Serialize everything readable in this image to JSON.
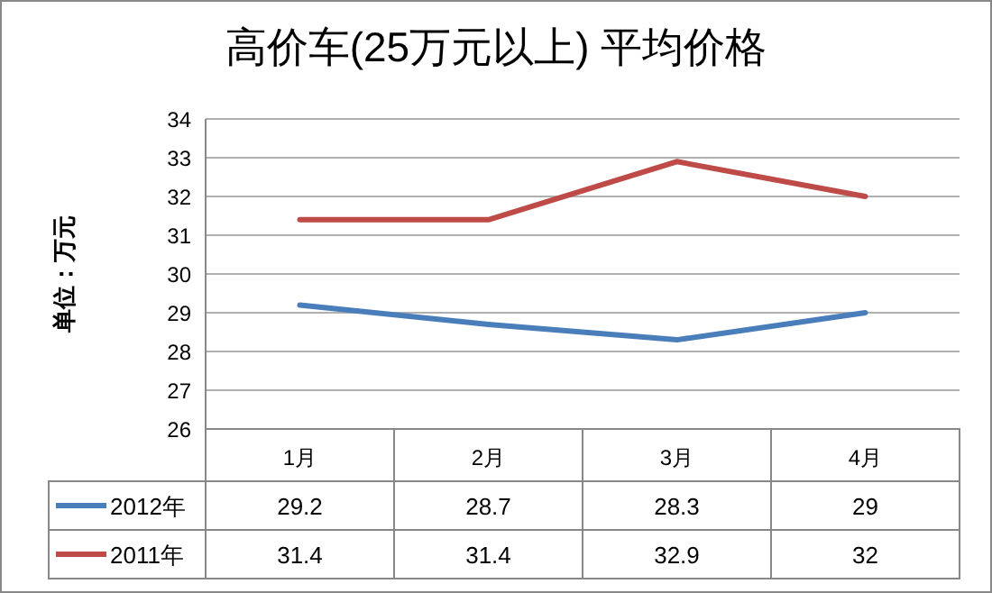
{
  "chart_data": {
    "type": "line",
    "title": "高价车(25万元以上) 平均价格",
    "ylabel": "单位：万元",
    "categories": [
      "1月",
      "2月",
      "3月",
      "4月"
    ],
    "series": [
      {
        "name": "2012年",
        "color": "#4a7ebb",
        "values": [
          29.2,
          28.7,
          28.3,
          29
        ]
      },
      {
        "name": "2011年",
        "color": "#be4b48",
        "values": [
          31.4,
          31.4,
          32.9,
          32
        ]
      }
    ],
    "ylim": [
      26,
      34
    ],
    "yticks": [
      26,
      27,
      28,
      29,
      30,
      31,
      32,
      33,
      34
    ],
    "grid": "y",
    "legend": "bottom",
    "data_labels": true,
    "marker": "none",
    "line_style": "solid"
  }
}
